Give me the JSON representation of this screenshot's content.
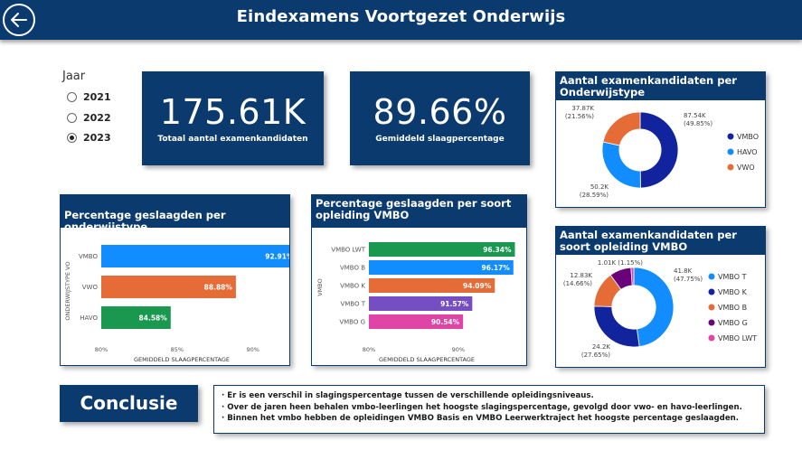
{
  "header": {
    "title": "Eindexamens Voortgezet Onderwijs",
    "back_icon": "arrow-left-icon"
  },
  "year_filter": {
    "title": "Jaar",
    "options": [
      {
        "label": "2021",
        "selected": false
      },
      {
        "label": "2022",
        "selected": false
      },
      {
        "label": "2023",
        "selected": true
      }
    ]
  },
  "kpis": [
    {
      "value": "175.61K",
      "label": "Totaal aantal examenkandidaten"
    },
    {
      "value": "89.66%",
      "label": "Gemiddeld slaagpercentage"
    }
  ],
  "colors": {
    "navy": "#0b3a6f",
    "blue": "#118dff",
    "dark_blue": "#12239e",
    "orange": "#e66c37",
    "green": "#1aab40",
    "purple": "#6b007b",
    "violet": "#744ec2",
    "pink": "#e044a7",
    "teal_green": "#118a4d"
  },
  "chart_data": [
    {
      "id": "pct_onderwijstype",
      "type": "bar",
      "title": "Percentage geslaagden per onderwijstype",
      "ylabel": "ONDERWIJSTYPE VO",
      "xlabel": "GEMIDDELD SLAAGPERCENTAGE",
      "xlim": [
        80,
        93
      ],
      "ticks": [
        80,
        85,
        90
      ],
      "tick_labels": [
        "80%",
        "85%",
        "90%"
      ],
      "categories": [
        "VMBO",
        "VWO",
        "HAVO"
      ],
      "values": [
        92.91,
        88.88,
        84.58
      ],
      "labels": [
        "92.91%",
        "88.88%",
        "84.58%"
      ],
      "colors": [
        "#118dff",
        "#e66c37",
        "#1a9850"
      ]
    },
    {
      "id": "pct_vmbo",
      "type": "bar",
      "title": "Percentage geslaagden per soort opleiding VMBO",
      "ylabel": "VMBO",
      "xlabel": "GEMIDDELD SLAAGPERCENTAGE",
      "xlim": [
        80,
        97
      ],
      "ticks": [
        80,
        90
      ],
      "tick_labels": [
        "80%",
        "90%"
      ],
      "categories": [
        "VMBO LWT",
        "VMBO B",
        "VMBO K",
        "VMBO T",
        "VMBO G"
      ],
      "values": [
        96.34,
        96.17,
        94.09,
        91.57,
        90.54
      ],
      "labels": [
        "96.34%",
        "96.17%",
        "94.09%",
        "91.57%",
        "90.54%"
      ],
      "colors": [
        "#1a9850",
        "#118dff",
        "#e66c37",
        "#744ec2",
        "#e044a7"
      ]
    },
    {
      "id": "kandidaten_onderwijstype",
      "type": "pie",
      "title": "Aantal examenkandidaten per Onderwijstype",
      "slices": [
        {
          "name": "VMBO",
          "value": 87.54,
          "label": "87.54K",
          "pct": "(49.85%)",
          "color": "#12239e"
        },
        {
          "name": "HAVO",
          "value": 50.2,
          "label": "50.2K",
          "pct": "(28.59%)",
          "color": "#118dff"
        },
        {
          "name": "VWO",
          "value": 37.87,
          "label": "37.87K",
          "pct": "(21.56%)",
          "color": "#e66c37"
        }
      ]
    },
    {
      "id": "kandidaten_vmbo",
      "type": "pie",
      "title": "Aantal examenkandidaten per soort opleiding VMBO",
      "slices": [
        {
          "name": "VMBO T",
          "value": 41.8,
          "label": "41.8K",
          "pct": "(47.75%)",
          "color": "#118dff"
        },
        {
          "name": "VMBO K",
          "value": 24.2,
          "label": "24.2K",
          "pct": "(27.65%)",
          "color": "#12239e"
        },
        {
          "name": "VMBO B",
          "value": 12.83,
          "label": "12.83K",
          "pct": "(14.66%)",
          "color": "#e66c37"
        },
        {
          "name": "VMBO G",
          "value": 7.7,
          "label": "",
          "pct": "",
          "color": "#6b007b"
        },
        {
          "name": "VMBO LWT",
          "value": 1.01,
          "label": "1.01K (1.15%)",
          "pct": "",
          "color": "#e044a7"
        }
      ]
    }
  ],
  "conclusie": {
    "title": "Conclusie",
    "lines": [
      "· Er is een verschil in slagingspercentage tussen de verschillende opleidingsniveaus.",
      "· Over de jaren heen behalen vmbo-leerlingen het hoogste slagingspercentage, gevolgd door vwo- en havo-leerlingen.",
      "· Binnen het vmbo hebben de opleidingen VMBO Basis en VMBO Leerwerktraject het hoogste percentage geslaagden."
    ]
  }
}
